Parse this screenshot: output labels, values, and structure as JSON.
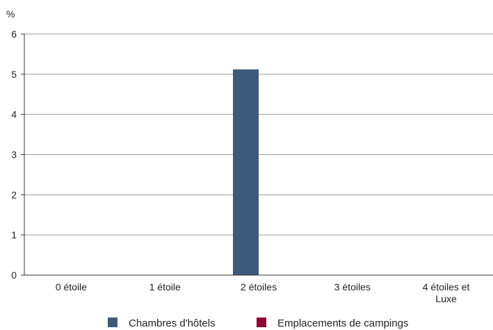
{
  "chart_data": {
    "type": "bar",
    "ylabel": "%",
    "ylim": [
      0,
      6
    ],
    "yticks": [
      0,
      1,
      2,
      3,
      4,
      5,
      6
    ],
    "grid": true,
    "legend_position": "bottom",
    "categories": [
      "0 étoile",
      "1 étoile",
      "2 étoiles",
      "3 étoiles",
      "4 étoiles et Luxe"
    ],
    "category_label_lines": [
      [
        "0 étoile"
      ],
      [
        "1 étoile"
      ],
      [
        "2 étoiles"
      ],
      [
        "3 étoiles"
      ],
      [
        "4 étoiles et",
        "Luxe"
      ]
    ],
    "series": [
      {
        "name": "Chambres d'hôtels",
        "color": "#3d5a78",
        "values": [
          0,
          0,
          5.12,
          0,
          0
        ]
      },
      {
        "name": "Emplacements de campings",
        "color": "#8b0a33",
        "values": [
          0,
          0,
          0,
          0,
          0
        ]
      }
    ]
  }
}
